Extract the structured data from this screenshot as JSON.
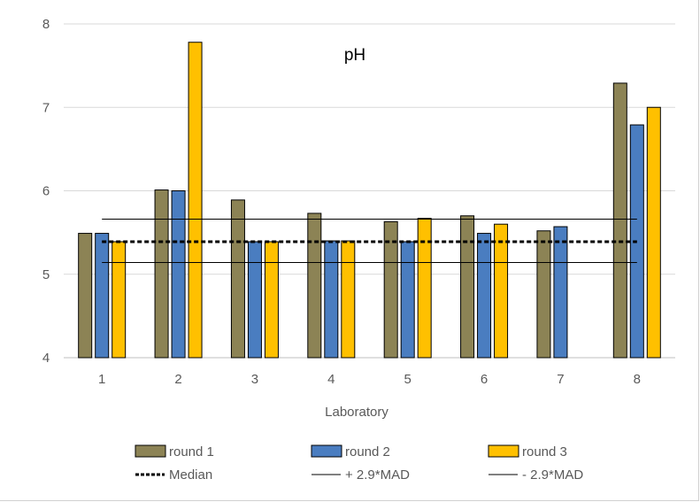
{
  "chart_data": {
    "type": "bar",
    "title": "pH",
    "xlabel": "Laboratory",
    "ylabel": "",
    "categories": [
      "1",
      "2",
      "3",
      "4",
      "5",
      "6",
      "7",
      "8"
    ],
    "ylim": [
      4,
      8
    ],
    "yticks": [
      "4",
      "5",
      "6",
      "7",
      "8"
    ],
    "grid": true,
    "legend_position": "bottom",
    "series": [
      {
        "name": "round 1",
        "color": "#8c8355",
        "values": [
          5.49,
          6.01,
          5.89,
          5.73,
          5.63,
          5.7,
          5.52,
          7.29
        ]
      },
      {
        "name": "round 2",
        "color": "#4a7dc0",
        "values": [
          5.49,
          6.0,
          5.39,
          5.4,
          5.39,
          5.49,
          5.57,
          6.79
        ]
      },
      {
        "name": "round 3",
        "color": "#ffc000",
        "values": [
          5.39,
          7.78,
          5.39,
          5.4,
          5.67,
          5.6,
          null,
          7.0
        ]
      }
    ],
    "reference_lines": [
      {
        "name": "Median",
        "value": 5.39,
        "style": "dashed"
      },
      {
        "name": "+ 2.9*MAD",
        "value": 5.66,
        "style": "solid"
      },
      {
        "name": "- 2.9*MAD",
        "value": 5.14,
        "style": "solid"
      }
    ]
  }
}
